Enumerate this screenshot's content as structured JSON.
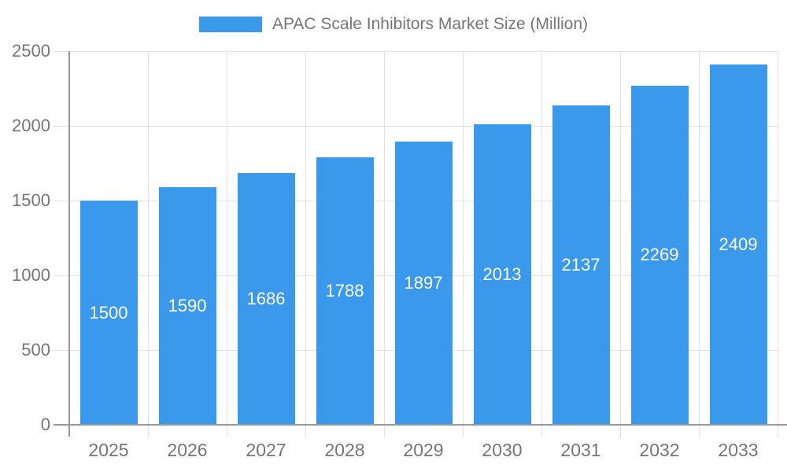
{
  "legend": {
    "label": "APAC Scale Inhibitors Market Size (Million)"
  },
  "chart_data": {
    "type": "bar",
    "title": "APAC Scale Inhibitors Market Size (Million)",
    "categories": [
      "2025",
      "2026",
      "2027",
      "2028",
      "2029",
      "2030",
      "2031",
      "2032",
      "2033"
    ],
    "values": [
      1500,
      1590,
      1686,
      1788,
      1897,
      2013,
      2137,
      2269,
      2409
    ],
    "xlabel": "",
    "ylabel": "",
    "ylim": [
      0,
      2500
    ],
    "yticks": [
      0,
      500,
      1000,
      1500,
      2000,
      2500
    ],
    "grid": true,
    "legend_position": "top",
    "bar_color": "#3B99EC",
    "bar_label_color": "#FFFFFF"
  },
  "colors": {
    "background": "#FFFFFF",
    "axis": "#999999",
    "grid": "#E2E2E2",
    "tick_label": "#757575",
    "legend_text": "#757575"
  }
}
